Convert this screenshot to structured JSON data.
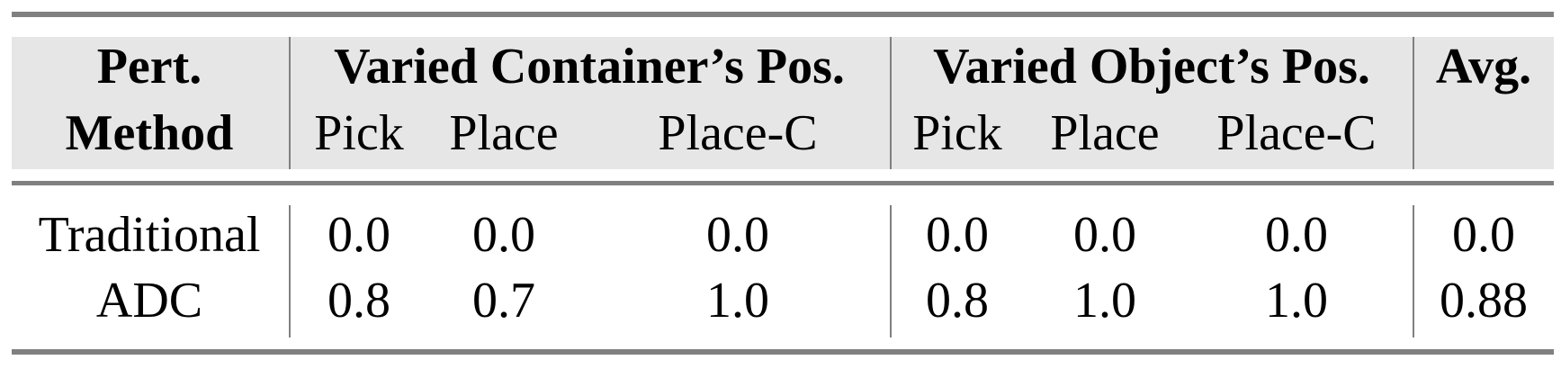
{
  "header": {
    "row1": {
      "method": "Pert.",
      "group1": "Varied Container’s Pos.",
      "group2": "Varied Object’s Pos.",
      "avg": "Avg."
    },
    "row2": {
      "method": "Method",
      "group1": [
        "Pick",
        "Place",
        "Place-C"
      ],
      "group2": [
        "Pick",
        "Place",
        "Place-C"
      ]
    }
  },
  "rows": [
    {
      "method": "Traditional",
      "values": [
        "0.0",
        "0.0",
        "0.0",
        "0.0",
        "0.0",
        "0.0"
      ],
      "avg": "0.0"
    },
    {
      "method": "ADC",
      "values": [
        "0.8",
        "0.7",
        "1.0",
        "0.8",
        "1.0",
        "1.0"
      ],
      "avg": "0.88"
    }
  ],
  "colors": {
    "header_bg": "#e6e6e6",
    "rule": "#808080"
  }
}
